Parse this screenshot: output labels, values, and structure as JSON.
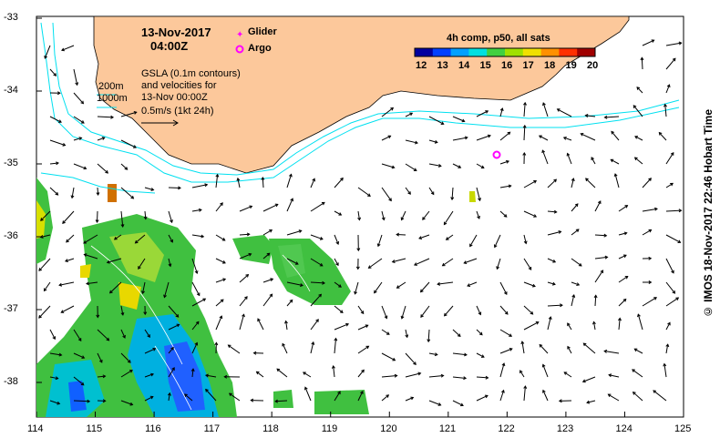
{
  "header": {
    "date": "13-Nov-2017",
    "time": "04:00Z"
  },
  "legend": {
    "glider_label": "Glider",
    "argo_label": "Argo",
    "glider_color": "#ff00ff",
    "argo_color": "#ff00ff"
  },
  "annotation": {
    "line1": "GSLA (0.1m contours)",
    "line2": "and velocities for",
    "line3": "13-Nov 00:00Z",
    "line4": "0.5m/s (1kt 24h)",
    "contour_200": "200m",
    "contour_1000": "1000m"
  },
  "colorbar": {
    "title": "4h comp, p50, all sats",
    "ticks": [
      "12",
      "13",
      "14",
      "15",
      "16",
      "17",
      "18",
      "19",
      "20"
    ],
    "colors": [
      "#0000a0",
      "#0040ff",
      "#00a0ff",
      "#00e0e0",
      "#40d040",
      "#a0e000",
      "#f0e000",
      "#ff9000",
      "#ff3000",
      "#a00000"
    ]
  },
  "axes": {
    "x_ticks": [
      "114",
      "115",
      "116",
      "117",
      "118",
      "119",
      "120",
      "121",
      "122",
      "123",
      "124",
      "125"
    ],
    "y_ticks": [
      "-33",
      "-34",
      "-35",
      "-36",
      "-37",
      "-38"
    ]
  },
  "credit": "© IMOS 18-Nov-2017 22:46 Hobart Time",
  "colors": {
    "land": "#fcc89b",
    "isobath": "#00e0f0",
    "sst_warm": "#f0d000",
    "sst_green": "#40c040"
  }
}
